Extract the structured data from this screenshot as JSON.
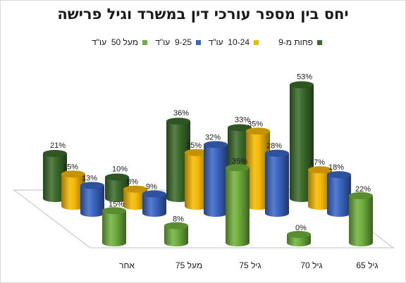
{
  "chart_data": {
    "type": "bar",
    "style": "3d-cylinder",
    "title": "יחס בין מספר עורכי דין במשרד וגיל פרישה",
    "categories": [
      "אחר",
      "מעל 75",
      "גיל 75",
      "גיל 70",
      "גיל 65"
    ],
    "series": [
      {
        "name": "פחות מ-9",
        "color": "#3b6a2a",
        "values": [
          21,
          10,
          36,
          33,
          53
        ],
        "labels": [
          "21%",
          "10%",
          "36%",
          "33%",
          "53%"
        ]
      },
      {
        "name": "10-24  עו\"ד",
        "color": "#f5b800",
        "values": [
          15,
          8,
          25,
          35,
          17
        ],
        "labels": [
          "15%",
          "8%",
          "25%",
          "35%",
          "17%"
        ]
      },
      {
        "name": "9-25  עו\"ד",
        "color": "#3a66c4",
        "values": [
          13,
          9,
          32,
          28,
          18
        ],
        "labels": [
          "13%",
          "9%",
          "32%",
          "28%",
          "18%"
        ]
      },
      {
        "name": "מעל 50  עו\"ד",
        "color": "#6fb03c",
        "values": [
          15,
          8,
          35,
          0,
          22
        ],
        "labels": [
          "15%",
          "8%",
          "35%",
          "0%",
          "22%"
        ]
      }
    ],
    "ylim": [
      0,
      60
    ],
    "grid": false,
    "legend_position": "top"
  }
}
